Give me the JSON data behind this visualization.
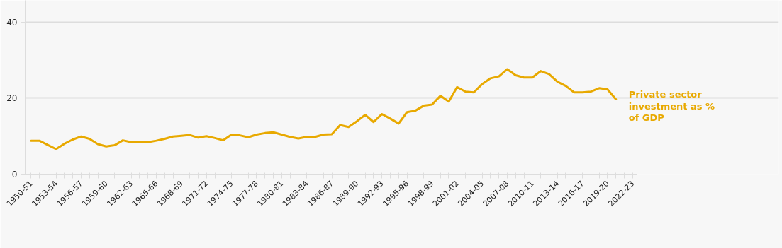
{
  "chart_data": {
    "type": "line",
    "categories": [
      "1950-51",
      null,
      null,
      "1953-54",
      null,
      null,
      "1956-57",
      null,
      null,
      "1959-60",
      null,
      null,
      "1962-63",
      null,
      null,
      "1965-66",
      null,
      null,
      "1968-69",
      null,
      null,
      "1971-72",
      null,
      null,
      "1974-75",
      null,
      null,
      "1977-78",
      null,
      null,
      "1980-81",
      null,
      null,
      "1983-84",
      null,
      null,
      "1986-87",
      null,
      null,
      "1989-90",
      null,
      null,
      "1992-93",
      null,
      null,
      "1995-96",
      null,
      null,
      "1998-99",
      null,
      null,
      "2001-02",
      null,
      null,
      "2004-05",
      null,
      null,
      "2007-08",
      null,
      null,
      "2010-11",
      null,
      null,
      "2013-14",
      null,
      null,
      "2016-17",
      null,
      null,
      "2019-20",
      null,
      null,
      "2022-23"
    ],
    "series": [
      {
        "name": "Private sector investment as % of GDP",
        "color": "#e8a900",
        "values": [
          8.8,
          8.8,
          7.7,
          6.6,
          8.0,
          9.1,
          9.9,
          9.3,
          7.9,
          7.3,
          7.6,
          8.9,
          8.4,
          8.5,
          8.4,
          8.8,
          9.3,
          9.9,
          10.1,
          10.3,
          9.6,
          10.0,
          9.5,
          8.9,
          10.4,
          10.2,
          9.7,
          10.4,
          10.8,
          11.0,
          10.4,
          9.8,
          9.4,
          9.8,
          9.8,
          10.4,
          10.5,
          12.9,
          12.4,
          13.9,
          15.6,
          13.7,
          15.8,
          14.6,
          13.3,
          16.3,
          16.7,
          18.0,
          18.3,
          20.6,
          19.1,
          22.9,
          21.7,
          21.5,
          23.7,
          25.2,
          25.7,
          27.6,
          26.0,
          25.4,
          25.4,
          27.1,
          26.3,
          24.3,
          23.2,
          21.5,
          21.5,
          21.7,
          22.6,
          22.3,
          19.7,
          null,
          null
        ]
      }
    ],
    "ylim": [
      0,
      45.7
    ],
    "yticks": [
      0,
      20,
      40
    ],
    "grid": "y",
    "legend": false
  }
}
